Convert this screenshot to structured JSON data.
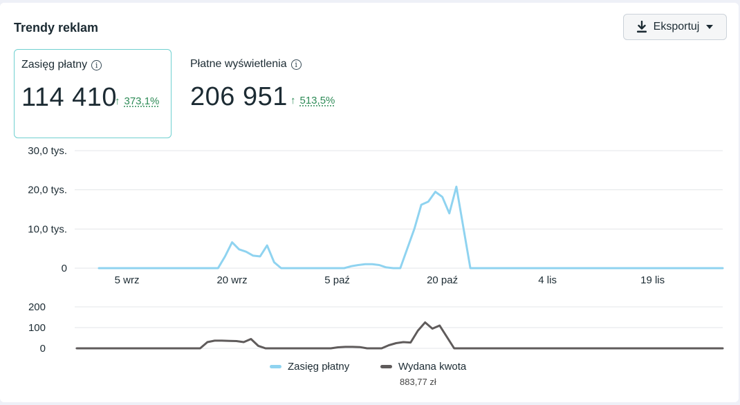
{
  "header": {
    "title": "Trendy reklam",
    "export_label": "Eksportuj"
  },
  "metrics": [
    {
      "label": "Zasięg płatny",
      "value": "114 410",
      "change": "373,1%",
      "arrow": "↑",
      "selected": true
    },
    {
      "label": "Płatne wyświetlenia",
      "value": "206 951",
      "change": "513,5%",
      "arrow": "↑",
      "selected": false
    }
  ],
  "colors": {
    "reach": "#8fd3f0",
    "spend": "#5f5b5b",
    "positive": "#2e8b57",
    "grid": "#e3e5e8"
  },
  "chart_data": [
    {
      "type": "line",
      "series": [
        {
          "name": "Zasięg płatny",
          "values": [
            [
              1,
              0
            ],
            [
              18,
              0
            ],
            [
              19,
              3000
            ],
            [
              20,
              6600
            ],
            [
              21,
              4800
            ],
            [
              22,
              4200
            ],
            [
              23,
              3200
            ],
            [
              24,
              3000
            ],
            [
              25,
              5800
            ],
            [
              26,
              1500
            ],
            [
              27,
              0
            ],
            [
              36,
              0
            ],
            [
              37,
              500
            ],
            [
              38,
              800
            ],
            [
              39,
              1000
            ],
            [
              40,
              1000
            ],
            [
              41,
              800
            ],
            [
              42,
              200
            ],
            [
              43,
              0
            ],
            [
              44,
              0
            ],
            [
              45,
              5000
            ],
            [
              46,
              10000
            ],
            [
              47,
              16200
            ],
            [
              48,
              17000
            ],
            [
              49,
              19500
            ],
            [
              50,
              18200
            ],
            [
              51,
              14000
            ],
            [
              52,
              20800
            ],
            [
              54,
              0
            ],
            [
              90,
              0
            ]
          ]
        }
      ],
      "ylim": [
        0,
        30000
      ],
      "yticks": [
        "30,0 tys.",
        "20,0 tys.",
        "10,0 tys.",
        "0"
      ],
      "xticks": [
        "5 wrz",
        "20 wrz",
        "5 paź",
        "20 paź",
        "4 lis",
        "19 lis"
      ],
      "grid": true
    },
    {
      "type": "line",
      "series": [
        {
          "name": "Wydana kwota",
          "values": [
            [
              1,
              0
            ],
            [
              18,
              0
            ],
            [
              19,
              30
            ],
            [
              20,
              37
            ],
            [
              21,
              37
            ],
            [
              22,
              36
            ],
            [
              23,
              35
            ],
            [
              24,
              30
            ],
            [
              25,
              45
            ],
            [
              26,
              12
            ],
            [
              27,
              0
            ],
            [
              36,
              0
            ],
            [
              37,
              5
            ],
            [
              38,
              7
            ],
            [
              39,
              7
            ],
            [
              40,
              6
            ],
            [
              41,
              0
            ],
            [
              43,
              0
            ],
            [
              44,
              15
            ],
            [
              45,
              25
            ],
            [
              46,
              30
            ],
            [
              47,
              28
            ],
            [
              48,
              85
            ],
            [
              49,
              125
            ],
            [
              50,
              95
            ],
            [
              51,
              110
            ],
            [
              53,
              0
            ],
            [
              90,
              0
            ]
          ]
        }
      ],
      "ylim": [
        0,
        200
      ],
      "yticks": [
        "200",
        "100",
        "0"
      ],
      "grid": true
    }
  ],
  "legend": {
    "reach_label": "Zasięg płatny",
    "spend_label": "Wydana kwota",
    "spend_total": "883,77 zł"
  }
}
